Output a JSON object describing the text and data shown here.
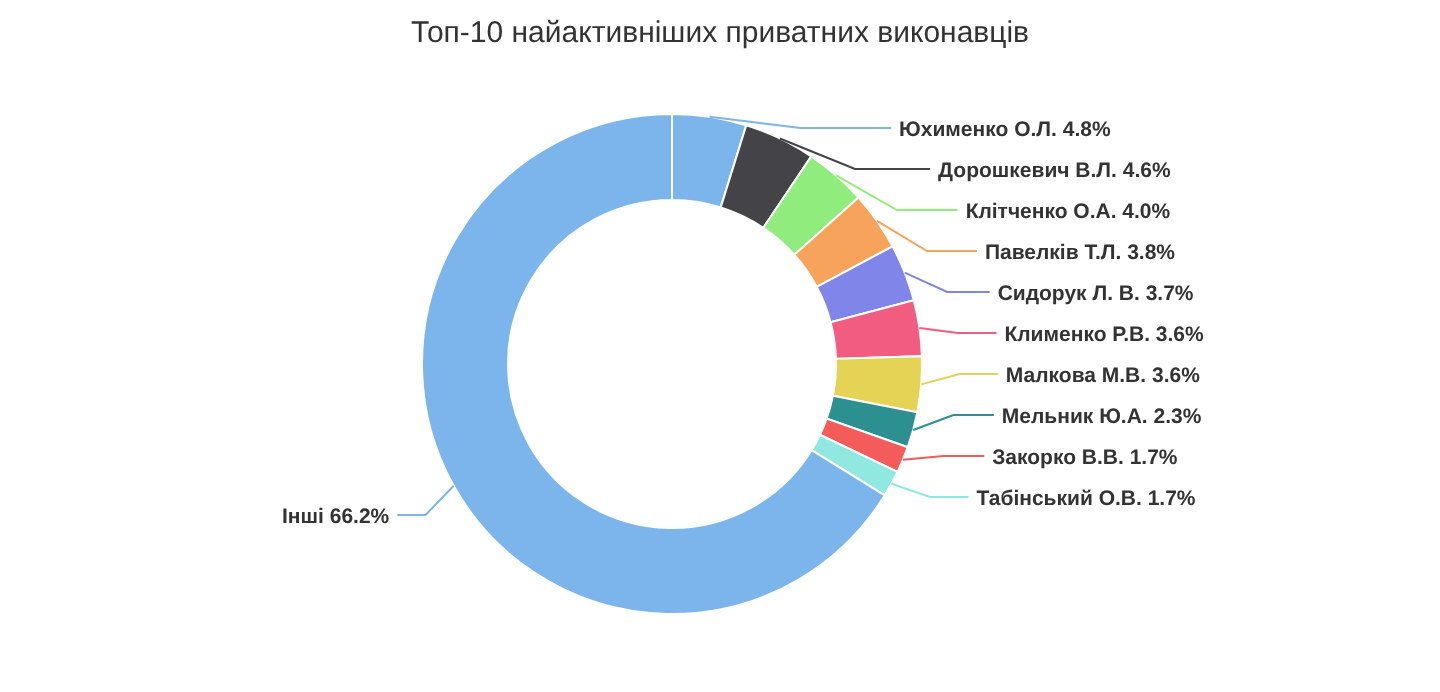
{
  "chart_data": {
    "type": "donut",
    "title": "Топ-10 найактивніших приватних виконавців",
    "categories": [
      "Юхименко О.Л.",
      "Дорошкевич В.Л.",
      "Клітченко О.А.",
      "Павелків Т.Л.",
      "Сидорук Л. В.",
      "Клименко Р.В.",
      "Малкова М.В.",
      "Мельник Ю.А.",
      "Закорко В.В.",
      "Табінський О.В.",
      "Інші"
    ],
    "values": [
      4.8,
      4.6,
      4.0,
      3.8,
      3.7,
      3.6,
      3.6,
      2.3,
      1.7,
      1.7,
      66.2
    ],
    "value_labels": [
      "4.8%",
      "4.6%",
      "4.0%",
      "3.8%",
      "3.7%",
      "3.6%",
      "3.6%",
      "2.3%",
      "1.7%",
      "1.7%",
      "66.2%"
    ],
    "colors": [
      "#7cb5ec",
      "#434348",
      "#90ed7d",
      "#f7a35c",
      "#8085e9",
      "#f15c80",
      "#e4d354",
      "#2b908f",
      "#f45b5b",
      "#91e8e1",
      "#7cb5ec"
    ],
    "legend": false
  }
}
